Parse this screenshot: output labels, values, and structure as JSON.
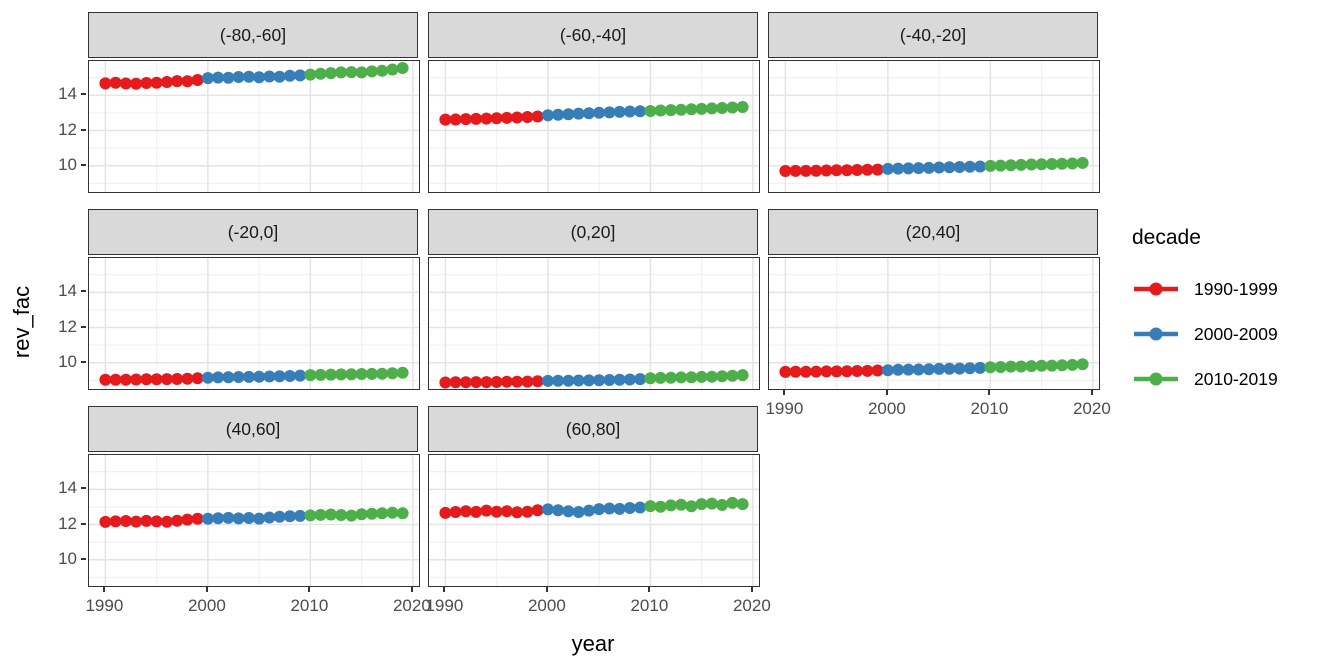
{
  "chart_data": {
    "type": "scatter",
    "geom": "point+line",
    "title": "",
    "xlabel": "year",
    "ylabel": "rev_fac",
    "x_ticks": [
      1990,
      2000,
      2010,
      2020
    ],
    "x_minor": [
      1995,
      2005,
      2015
    ],
    "y_ticks": [
      14,
      12,
      10
    ],
    "y_minor": [
      9,
      11,
      13,
      15
    ],
    "x_range": [
      1988.4,
      2020.6
    ],
    "y_range": [
      8.51,
      15.95
    ],
    "grid": "on",
    "legend_position": "right",
    "legend": {
      "title": "decade",
      "entries": [
        {
          "label": "1990-1999",
          "color": "#E41A1C"
        },
        {
          "label": "2000-2009",
          "color": "#377EB8"
        },
        {
          "label": "2010-2019",
          "color": "#4DAF4A"
        }
      ]
    },
    "years": [
      1990,
      1991,
      1992,
      1993,
      1994,
      1995,
      1996,
      1997,
      1998,
      1999,
      2000,
      2001,
      2002,
      2003,
      2004,
      2005,
      2006,
      2007,
      2008,
      2009,
      2010,
      2011,
      2012,
      2013,
      2014,
      2015,
      2016,
      2017,
      2018,
      2019
    ],
    "facets": [
      {
        "label": "(-80,-60]",
        "values": [
          14.68,
          14.71,
          14.67,
          14.66,
          14.7,
          14.72,
          14.76,
          14.81,
          14.8,
          14.87,
          14.98,
          15.01,
          15.0,
          15.04,
          15.05,
          15.03,
          15.07,
          15.06,
          15.11,
          15.13,
          15.18,
          15.23,
          15.26,
          15.3,
          15.32,
          15.3,
          15.36,
          15.4,
          15.47,
          15.55
        ]
      },
      {
        "label": "(-60,-40]",
        "values": [
          12.62,
          12.63,
          12.65,
          12.66,
          12.68,
          12.7,
          12.72,
          12.74,
          12.77,
          12.8,
          12.87,
          12.9,
          12.93,
          12.96,
          12.98,
          13.01,
          13.03,
          13.06,
          13.08,
          13.1,
          13.11,
          13.14,
          13.16,
          13.18,
          13.21,
          13.23,
          13.26,
          13.28,
          13.31,
          13.34
        ]
      },
      {
        "label": "(-40,-20]",
        "values": [
          9.7,
          9.71,
          9.71,
          9.72,
          9.73,
          9.74,
          9.75,
          9.76,
          9.77,
          9.78,
          9.82,
          9.84,
          9.85,
          9.87,
          9.88,
          9.9,
          9.91,
          9.93,
          9.94,
          9.96,
          9.99,
          10.01,
          10.03,
          10.05,
          10.07,
          10.09,
          10.1,
          10.12,
          10.13,
          10.16
        ]
      },
      {
        "label": "(-20,0]",
        "values": [
          9.03,
          9.04,
          9.04,
          9.05,
          9.06,
          9.06,
          9.07,
          9.08,
          9.09,
          9.12,
          9.15,
          9.17,
          9.18,
          9.19,
          9.2,
          9.21,
          9.22,
          9.23,
          9.25,
          9.27,
          9.3,
          9.31,
          9.33,
          9.34,
          9.35,
          9.36,
          9.37,
          9.38,
          9.4,
          9.43
        ]
      },
      {
        "label": "(0,20]",
        "values": [
          8.88,
          8.89,
          8.89,
          8.9,
          8.9,
          8.91,
          8.92,
          8.92,
          8.93,
          8.95,
          8.97,
          8.98,
          8.98,
          8.99,
          9.0,
          9.01,
          9.02,
          9.03,
          9.05,
          9.07,
          9.12,
          9.14,
          9.15,
          9.17,
          9.18,
          9.2,
          9.21,
          9.23,
          9.26,
          9.3
        ]
      },
      {
        "label": "(20,40]",
        "values": [
          9.48,
          9.49,
          9.49,
          9.5,
          9.51,
          9.51,
          9.52,
          9.53,
          9.54,
          9.56,
          9.58,
          9.6,
          9.61,
          9.62,
          9.63,
          9.65,
          9.66,
          9.67,
          9.69,
          9.71,
          9.74,
          9.76,
          9.78,
          9.79,
          9.81,
          9.83,
          9.84,
          9.86,
          9.88,
          9.91
        ]
      },
      {
        "label": "(40,60]",
        "values": [
          12.15,
          12.18,
          12.2,
          12.17,
          12.21,
          12.18,
          12.16,
          12.22,
          12.28,
          12.33,
          12.33,
          12.36,
          12.38,
          12.35,
          12.37,
          12.34,
          12.4,
          12.44,
          12.47,
          12.49,
          12.52,
          12.55,
          12.57,
          12.54,
          12.51,
          12.58,
          12.61,
          12.64,
          12.67,
          12.64
        ]
      },
      {
        "label": "(60,80]",
        "values": [
          12.66,
          12.71,
          12.76,
          12.72,
          12.79,
          12.73,
          12.76,
          12.7,
          12.73,
          12.81,
          12.86,
          12.81,
          12.76,
          12.71,
          12.79,
          12.88,
          12.91,
          12.89,
          12.94,
          12.97,
          13.05,
          13.01,
          13.09,
          13.12,
          13.04,
          13.16,
          13.19,
          13.11,
          13.23,
          13.16
        ]
      }
    ]
  }
}
